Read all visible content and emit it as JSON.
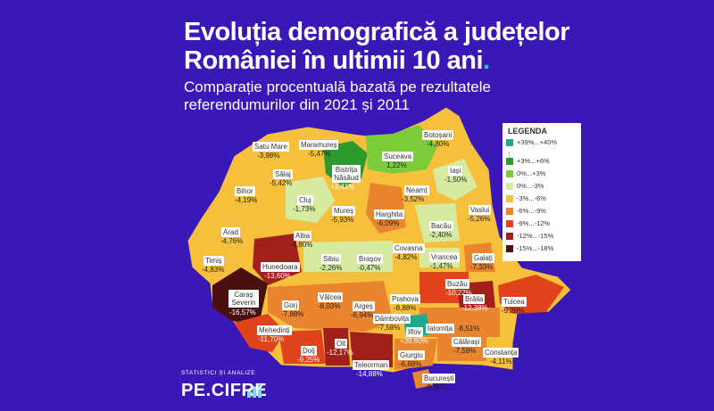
{
  "title_line1": "Evoluția demografică a județelor",
  "title_line2": "României în ultimii 10 ani",
  "title_dot": ".",
  "subtitle": "Comparație procentuală bazată pe rezultatele referendumurilor din 2021 și 2011",
  "legend": {
    "title": "LEGENDA",
    "dots": "⋮",
    "items": [
      {
        "label": "+39%...+40%",
        "color": "#1fa890"
      },
      {
        "label": "+3%...+6%",
        "color": "#2c9a2c"
      },
      {
        "label": "0%...+3%",
        "color": "#7ccc3a"
      },
      {
        "label": "0%...-3%",
        "color": "#d7eba0"
      },
      {
        "label": "-3%...-6%",
        "color": "#f7c03c"
      },
      {
        "label": "-6%...-9%",
        "color": "#e9842f"
      },
      {
        "label": "-9%...-12%",
        "color": "#e1431c"
      },
      {
        "label": "-12%...-15%",
        "color": "#a1201c"
      },
      {
        "label": "-15%...-18%",
        "color": "#4a1010"
      }
    ]
  },
  "counties": [
    {
      "name": "Satu Mare",
      "value": "-3,98%"
    },
    {
      "name": "Maramureș",
      "value": "-5,47%"
    },
    {
      "name": "Suceava",
      "value": "1,22%"
    },
    {
      "name": "Botoșani",
      "value": "-4,80%"
    },
    {
      "name": "Bistrița Năsăud",
      "value": "+3,41%"
    },
    {
      "name": "Sălaj",
      "value": "-5,42%"
    },
    {
      "name": "Iași",
      "value": "-1,50%"
    },
    {
      "name": "Bihor",
      "value": "-4,19%"
    },
    {
      "name": "Cluj",
      "value": "-1,73%"
    },
    {
      "name": "Neamț",
      "value": "-3,52%"
    },
    {
      "name": "Mureș",
      "value": "-5,93%"
    },
    {
      "name": "Harghita",
      "value": "-6,09%"
    },
    {
      "name": "Vaslui",
      "value": "-5,26%"
    },
    {
      "name": "Arad",
      "value": "-4,76%"
    },
    {
      "name": "Alba",
      "value": "-4,80%"
    },
    {
      "name": "Bacău",
      "value": "-2,40%"
    },
    {
      "name": "Timiș",
      "value": "-4,83%"
    },
    {
      "name": "Sibiu",
      "value": "-2,26%"
    },
    {
      "name": "Brașov",
      "value": "-0,47%"
    },
    {
      "name": "Covasna",
      "value": "-4,82%"
    },
    {
      "name": "Galați",
      "value": "-7,33%"
    },
    {
      "name": "Hunedoara",
      "value": "-13,60%"
    },
    {
      "name": "Vrancea",
      "value": "-1,47%"
    },
    {
      "name": "Buzău",
      "value": "-10,22%"
    },
    {
      "name": "Caraș Severin",
      "value": "-16,57%"
    },
    {
      "name": "Gorj",
      "value": "-7,88%"
    },
    {
      "name": "Vâlcea",
      "value": "-8,03%"
    },
    {
      "name": "Argeș",
      "value": "-6,94%"
    },
    {
      "name": "Prahova",
      "value": "-8,88%"
    },
    {
      "name": "Brăila",
      "value": "-12,38%"
    },
    {
      "name": "Tulcea",
      "value": "-9,26%"
    },
    {
      "name": "Dâmbovița",
      "value": "-7,58%"
    },
    {
      "name": "Ialomița",
      "value": "-8,51%"
    },
    {
      "name": "Ilfov",
      "value": "+39,60%"
    },
    {
      "name": "Mehedinți",
      "value": "-11,70%"
    },
    {
      "name": "Dolj",
      "value": "-9,25%"
    },
    {
      "name": "Olt",
      "value": "-12,17%"
    },
    {
      "name": "Călărași",
      "value": "-7,58%"
    },
    {
      "name": "Constanța",
      "value": "-4,11%"
    },
    {
      "name": "Giurgiu",
      "value": "-6,88%"
    },
    {
      "name": "Teleorman",
      "value": "-14,88%"
    },
    {
      "name": "București",
      "value": "-8,84%"
    }
  ],
  "brand": {
    "small": "STATISTICI ȘI ANALIZE",
    "big": "PE.CIFRE"
  }
}
